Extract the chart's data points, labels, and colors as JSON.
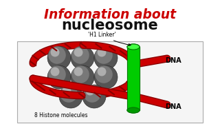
{
  "title_line1": "Information about",
  "title_line2": "nucleosome",
  "title1_color": "#cc0000",
  "title2_color": "#111111",
  "bg_color": "#ffffff",
  "dna_color": "#cc0000",
  "dna_dark": "#880000",
  "histone_base": "#555555",
  "histone_mid": "#888888",
  "histone_light": "#bbbbbb",
  "linker_green": "#00cc00",
  "linker_dark_green": "#007700",
  "linker_light_green": "#44ff44",
  "label_h1": "'H1 Linker'",
  "label_histone": "8 Histone molecules",
  "label_dna": "DNA",
  "diagram_border": "#aaaaaa"
}
